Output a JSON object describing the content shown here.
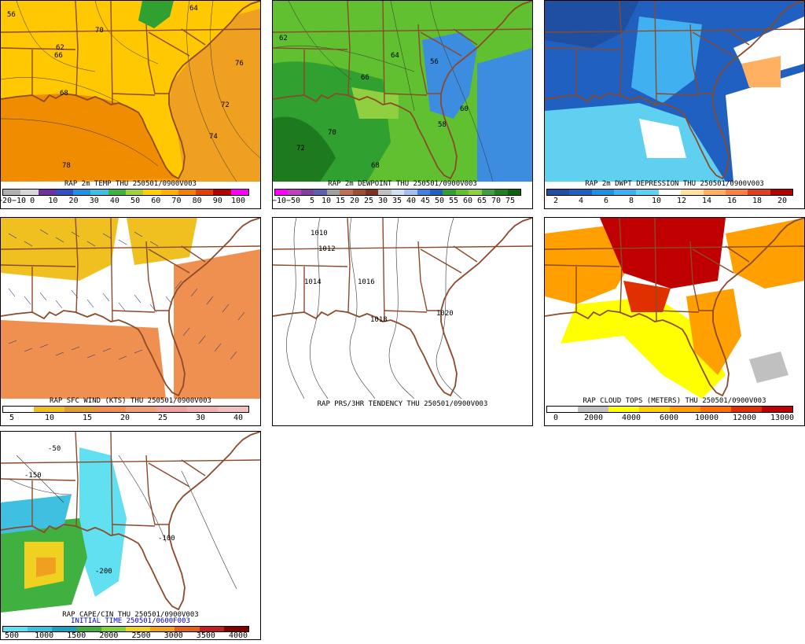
{
  "panels": [
    {
      "id": "temp",
      "title": "RAP 2m TEMP THU 250501/0900V003",
      "ticks": [
        "−20−10",
        "0",
        "10",
        "20",
        "30",
        "40",
        "50",
        "60",
        "70",
        "80",
        "90",
        "100"
      ],
      "colors": [
        "#b0b0b0",
        "#d8d8d8",
        "#7030a0",
        "#3050c0",
        "#2090e0",
        "#40c0e0",
        "#40b040",
        "#a0d040",
        "#ffd000",
        "#ffb000",
        "#f08000",
        "#e04000",
        "#b00000",
        "#ff00ff"
      ],
      "contour_labels": [
        "56",
        "62",
        "64",
        "66",
        "68",
        "70",
        "72",
        "74",
        "76",
        "78"
      ]
    },
    {
      "id": "dewpoint",
      "title": "RAP 2m DEWPOINT THU 250501/0900V003",
      "ticks": [
        "−10−5",
        "0",
        "5",
        "10",
        "15",
        "20",
        "25",
        "30",
        "35",
        "40",
        "45",
        "50",
        "55",
        "60",
        "65",
        "70",
        "75"
      ],
      "colors": [
        "#ff00ff",
        "#c040c0",
        "#8040a0",
        "#6060b0",
        "#a0a0a0",
        "#c07050",
        "#a05030",
        "#803020",
        "#c0c0c0",
        "#d0e0f0",
        "#a0c0f0",
        "#4080e0",
        "#2060c0",
        "#30a030",
        "#60c030",
        "#90d040",
        "#40a040",
        "#208020",
        "#106010"
      ],
      "contour_labels": [
        "56",
        "58",
        "60",
        "62",
        "64",
        "66",
        "68",
        "70",
        "72"
      ]
    },
    {
      "id": "dwpt_depression",
      "title": "RAP 2m DWPT DEPRESSION THU 250501/0900V003",
      "ticks": [
        "2",
        "4",
        "6",
        "8",
        "10",
        "12",
        "14",
        "16",
        "18",
        "20"
      ],
      "colors": [
        "#1e4fa0",
        "#2060c0",
        "#2090e0",
        "#40b0f0",
        "#60d0f0",
        "#ffffff",
        "#ffe0a0",
        "#ffb060",
        "#ff8040",
        "#e04020",
        "#b00000"
      ]
    },
    {
      "id": "sfc_wind",
      "title": "RAP SFC WIND (KTS) THU 250501/0900V003",
      "ticks": [
        "5",
        "10",
        "15",
        "20",
        "25",
        "30",
        "40"
      ],
      "colors": [
        "#ffffff",
        "#f0c020",
        "#e0a030",
        "#f09050",
        "#f0a070",
        "#f0a0a0",
        "#f0b0b0",
        "#f0c0c0"
      ]
    },
    {
      "id": "pressure",
      "title": "RAP PRS/3HR TENDENCY THU 250501/0900V003",
      "contour_labels": [
        "1010",
        "1012",
        "1014",
        "1016",
        "1018",
        "1020"
      ]
    },
    {
      "id": "cloud_tops",
      "title": "RAP CLOUD TOPS (METERS) THU 250501/0900V003",
      "ticks": [
        "0",
        "2000",
        "4000",
        "6000",
        "10000",
        "12000",
        "13000"
      ],
      "colors": [
        "#ffffff",
        "#c0c0c0",
        "#ffff00",
        "#ffd000",
        "#ffa000",
        "#ff7000",
        "#e03000",
        "#c00000"
      ]
    },
    {
      "id": "cape",
      "title": "RAP CAPE/CIN THU 250501/0900V003",
      "subtitle": "INITIAL TIME    250501/0600F003",
      "ticks": [
        "500",
        "1000",
        "1500",
        "2000",
        "2500",
        "3000",
        "3500",
        "4000"
      ],
      "colors": [
        "#60e0f0",
        "#40c0e0",
        "#20a0c0",
        "#40b040",
        "#80d040",
        "#f0d020",
        "#f0a020",
        "#e06020",
        "#c02020",
        "#800000"
      ],
      "contour_labels": [
        "-50",
        "-100",
        "-150",
        "-200"
      ]
    }
  ]
}
